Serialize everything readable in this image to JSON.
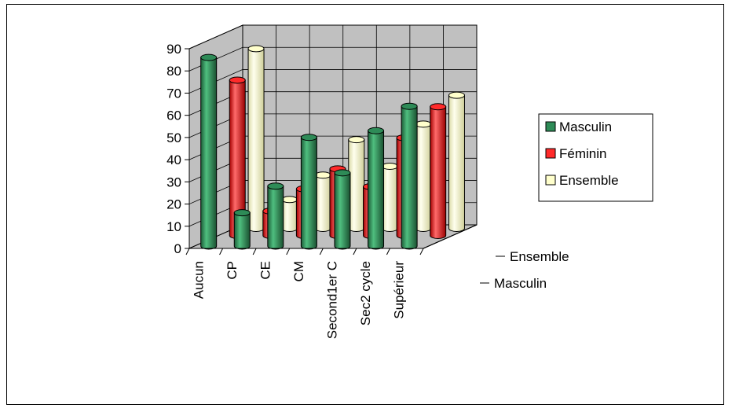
{
  "chart_data": {
    "type": "bar",
    "style": "3d-cylinder",
    "title": "",
    "categories": [
      "Aucun",
      "CP",
      "CE",
      "CM",
      "Second1er  C",
      "Sec2 cycle",
      "Supérieur"
    ],
    "series": [
      {
        "name": "Masculin",
        "values": [
          85,
          15,
          27,
          49,
          33,
          52,
          63
        ],
        "color": "#2e8b57"
      },
      {
        "name": "Féminin",
        "values": [
          70,
          11,
          21,
          30,
          22,
          44,
          58
        ],
        "color": "#ff2a2a"
      },
      {
        "name": "Ensemble",
        "values": [
          81,
          13,
          24,
          40,
          28,
          47,
          60
        ],
        "color": "#ffffcc"
      }
    ],
    "depth_labels": [
      "Ensemble",
      "Masculin"
    ],
    "ylim": [
      0,
      90
    ],
    "yticks": [
      "0",
      "10",
      "20",
      "30",
      "40",
      "50",
      "60",
      "70",
      "80",
      "90"
    ],
    "grid": true,
    "legend": "right",
    "wall_color": "#c0c0c0"
  }
}
